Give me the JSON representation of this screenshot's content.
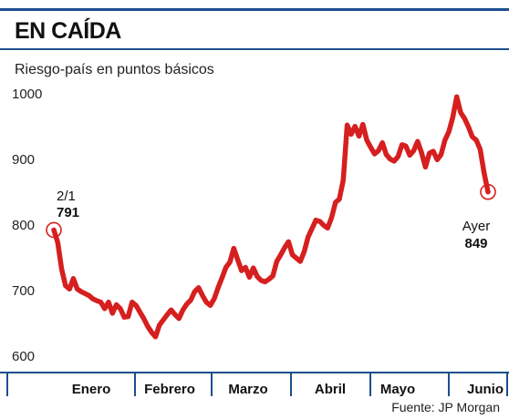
{
  "header": {
    "title": "EN CAÍDA",
    "subtitle": "Riesgo-país en puntos básicos",
    "source": "Fuente: JP Morgan"
  },
  "colors": {
    "line": "#d61f1f",
    "axis": "#1c4f8f",
    "text": "#111111"
  },
  "chart_data": {
    "type": "line",
    "title": "EN CAÍDA",
    "ylabel": "Riesgo-país en puntos básicos",
    "ylim": [
      600,
      1000
    ],
    "yticks": [
      600,
      700,
      800,
      900,
      1000
    ],
    "xtick_labels": [
      "Enero",
      "Febrero",
      "Marzo",
      "Abril",
      "Mayo",
      "Junio"
    ],
    "grid": false,
    "series": [
      {
        "values": [
          791,
          772,
          731,
          706,
          701,
          717,
          701,
          697,
          694,
          691,
          686,
          683,
          681,
          671,
          681,
          664,
          677,
          671,
          658,
          659,
          681,
          676,
          666,
          656,
          644,
          635,
          628,
          646,
          654,
          662,
          669,
          662,
          656,
          669,
          678,
          684,
          697,
          703,
          691,
          681,
          676,
          686,
          703,
          718,
          734,
          742,
          763,
          746,
          729,
          734,
          719,
          733,
          720,
          714,
          712,
          716,
          721,
          743,
          753,
          764,
          773,
          753,
          748,
          743,
          758,
          780,
          793,
          806,
          804,
          798,
          794,
          810,
          833,
          838,
          867,
          951,
          937,
          949,
          934,
          952,
          928,
          917,
          907,
          912,
          924,
          906,
          899,
          896,
          903,
          921,
          919,
          905,
          912,
          926,
          909,
          887,
          908,
          911,
          898,
          906,
          928,
          941,
          963,
          994,
          970,
          961,
          948,
          933,
          928,
          914,
          878,
          849
        ]
      }
    ],
    "annotations": [
      {
        "label": "2/1",
        "value": "791"
      },
      {
        "label": "Ayer",
        "value": "849"
      }
    ]
  }
}
